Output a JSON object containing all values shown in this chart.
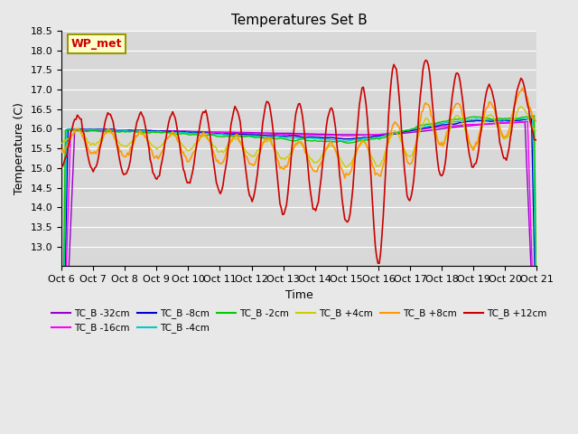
{
  "title": "Temperatures Set B",
  "xlabel": "Time",
  "ylabel": "Temperature (C)",
  "ylim": [
    12.5,
    18.5
  ],
  "yticks": [
    13.0,
    13.5,
    14.0,
    14.5,
    15.0,
    15.5,
    16.0,
    16.5,
    17.0,
    17.5,
    18.0,
    18.5
  ],
  "xtick_labels": [
    "Oct 6",
    "Oct 7",
    "Oct 8",
    "Oct 9",
    "Oct 10",
    "Oct 11",
    "Oct 12",
    "Oct 13",
    "Oct 14",
    "Oct 15",
    "Oct 16",
    "Oct 17",
    "Oct 18",
    "Oct 19",
    "Oct 20",
    "Oct 21"
  ],
  "wp_met_label": "WP_met",
  "wp_met_color": "#cc0000",
  "wp_met_bg": "#ffffcc",
  "series": [
    {
      "label": "TC_B -32cm",
      "color": "#9900cc"
    },
    {
      "label": "TC_B -16cm",
      "color": "#ff00ff"
    },
    {
      "label": "TC_B -8cm",
      "color": "#0000cc"
    },
    {
      "label": "TC_B -4cm",
      "color": "#00cccc"
    },
    {
      "label": "TC_B -2cm",
      "color": "#00cc00"
    },
    {
      "label": "TC_B +4cm",
      "color": "#cccc00"
    },
    {
      "label": "TC_B +8cm",
      "color": "#ff9900"
    },
    {
      "label": "TC_B +12cm",
      "color": "#cc0000"
    }
  ],
  "bg_color": "#e8e8e8",
  "plot_bg_color": "#d8d8d8",
  "grid_color": "#ffffff",
  "n_points": 360
}
